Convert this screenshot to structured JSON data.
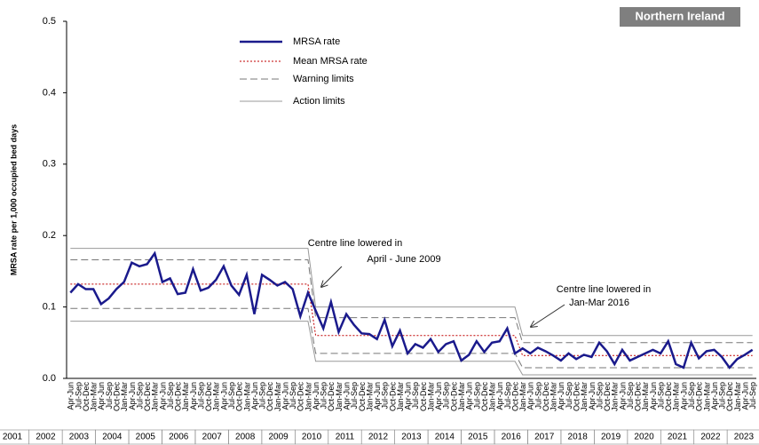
{
  "chart_data": {
    "type": "line",
    "badge": "Northern Ireland",
    "y_label": "MRSA rate per 1,000 occupied bed days",
    "ylim": [
      0,
      0.5
    ],
    "yticks": [
      {
        "value": 0,
        "label": "0.0"
      },
      0.1,
      0.2,
      0.3,
      0.4,
      0.5
    ],
    "categories": [
      "Apr-Jun",
      "Jul-Sep",
      "Oct-Dec",
      "Jan-Mar",
      "Apr-Jun",
      "Jul-Sep",
      "Oct-Dec",
      "Jan-Mar",
      "Apr-Jun",
      "Jul-Sep",
      "Oct-Dec",
      "Jan-Mar",
      "Apr-Jun",
      "Jul-Sep",
      "Oct-Dec",
      "Jan-Mar",
      "Apr-Jun",
      "Jul-Sep",
      "Oct-Dec",
      "Jan-Mar",
      "Apr-Jun",
      "Jul-Sep",
      "Oct-Dec",
      "Jan-Mar",
      "Apr-Jun",
      "Jul-Sep",
      "Oct-Dec",
      "Jan-Mar",
      "Apr-Jun",
      "Jul-Sep",
      "Oct-Dec",
      "Jan-Mar",
      "Apr-Jun",
      "Jul-Sep",
      "Oct-Dec",
      "Jan-Mar",
      "Apr-Jun",
      "Jul-Sep",
      "Oct-Dec",
      "Jan-Mar",
      "Apr-Jun",
      "Jul-Sep",
      "Oct-Dec",
      "Jan-Mar",
      "Apr-Jun",
      "Jul-Sep",
      "Oct-Dec",
      "Jan-Mar",
      "Apr-Jun",
      "Jul-Sep",
      "Oct-Dec",
      "Jan-Mar",
      "Apr-Jun",
      "Jul-Sep",
      "Oct-Dec",
      "Jan-Mar",
      "Apr-Jun",
      "Jul-Sep",
      "Oct-Dec",
      "Jan-Mar",
      "Apr-Jun",
      "Jul-Sep",
      "Oct-Dec",
      "Jan-Mar",
      "Apr-Jun",
      "Jul-Sep",
      "Oct-Dec",
      "Jan-Mar",
      "Apr-Jun",
      "Jul-Sep",
      "Oct-Dec",
      "Jan-Mar",
      "Apr-Jun",
      "Jul-Sep",
      "Oct-Dec",
      "Jan-Mar",
      "Apr-Jun",
      "Jul-Sep",
      "Oct-Dec",
      "Jan-Mar",
      "Apr-Jun",
      "Jul-Sep",
      "Oct-Dec",
      "Jan-Mar",
      "Apr-Jun",
      "Jul-Sep",
      "Oct-Dec",
      "Jan-Mar",
      "Apr-Jun",
      "Jul-Sep"
    ],
    "years": [
      "2001",
      "2002",
      "2003",
      "2004",
      "2005",
      "2006",
      "2007",
      "2008",
      "2009",
      "2010",
      "2011",
      "2012",
      "2013",
      "2014",
      "2015",
      "2016",
      "2017",
      "2018",
      "2019",
      "2020",
      "2021",
      "2022",
      "2023"
    ],
    "series": [
      {
        "name": "MRSA rate",
        "color": "#1a1a8c",
        "style": "solid",
        "values": [
          0.12,
          0.132,
          0.125,
          0.125,
          0.104,
          0.112,
          0.125,
          0.135,
          0.162,
          0.157,
          0.16,
          0.175,
          0.135,
          0.14,
          0.118,
          0.12,
          0.153,
          0.123,
          0.127,
          0.138,
          0.157,
          0.13,
          0.117,
          0.145,
          0.09,
          0.145,
          0.138,
          0.13,
          0.135,
          0.125,
          0.087,
          0.12,
          0.095,
          0.07,
          0.107,
          0.065,
          0.09,
          0.075,
          0.063,
          0.062,
          0.055,
          0.082,
          0.045,
          0.067,
          0.035,
          0.048,
          0.043,
          0.055,
          0.037,
          0.048,
          0.052,
          0.025,
          0.033,
          0.052,
          0.037,
          0.05,
          0.052,
          0.07,
          0.035,
          0.042,
          0.035,
          0.043,
          0.038,
          0.032,
          0.025,
          0.035,
          0.027,
          0.033,
          0.03,
          0.05,
          0.038,
          0.02,
          0.04,
          0.025,
          0.03,
          0.035,
          0.04,
          0.035,
          0.052,
          0.02,
          0.015,
          0.05,
          0.028,
          0.038,
          0.04,
          0.03,
          0.015,
          0.027,
          0.033,
          0.04
        ]
      },
      {
        "name": "Mean MRSA rate",
        "color": "#c00000",
        "style": "dotted",
        "values": [
          0.132,
          0.132,
          0.132,
          0.132,
          0.132,
          0.132,
          0.132,
          0.132,
          0.132,
          0.132,
          0.132,
          0.132,
          0.132,
          0.132,
          0.132,
          0.132,
          0.132,
          0.132,
          0.132,
          0.132,
          0.132,
          0.132,
          0.132,
          0.132,
          0.132,
          0.132,
          0.132,
          0.132,
          0.132,
          0.132,
          0.132,
          0.132,
          0.06,
          0.06,
          0.06,
          0.06,
          0.06,
          0.06,
          0.06,
          0.06,
          0.06,
          0.06,
          0.06,
          0.06,
          0.06,
          0.06,
          0.06,
          0.06,
          0.06,
          0.06,
          0.06,
          0.06,
          0.06,
          0.06,
          0.06,
          0.06,
          0.06,
          0.06,
          0.06,
          0.032,
          0.032,
          0.032,
          0.032,
          0.032,
          0.032,
          0.032,
          0.032,
          0.032,
          0.032,
          0.032,
          0.032,
          0.032,
          0.032,
          0.032,
          0.032,
          0.032,
          0.032,
          0.032,
          0.032,
          0.032,
          0.032,
          0.032,
          0.032,
          0.032,
          0.032,
          0.032,
          0.032,
          0.032,
          0.032,
          0.032
        ]
      },
      {
        "name": "Warning limits",
        "color": "#777777",
        "style": "dashed",
        "upper": [
          0.166,
          0.166,
          0.166,
          0.166,
          0.166,
          0.166,
          0.166,
          0.166,
          0.166,
          0.166,
          0.166,
          0.166,
          0.166,
          0.166,
          0.166,
          0.166,
          0.166,
          0.166,
          0.166,
          0.166,
          0.166,
          0.166,
          0.166,
          0.166,
          0.166,
          0.166,
          0.166,
          0.166,
          0.166,
          0.166,
          0.166,
          0.166,
          0.085,
          0.085,
          0.085,
          0.085,
          0.085,
          0.085,
          0.085,
          0.085,
          0.085,
          0.085,
          0.085,
          0.085,
          0.085,
          0.085,
          0.085,
          0.085,
          0.085,
          0.085,
          0.085,
          0.085,
          0.085,
          0.085,
          0.085,
          0.085,
          0.085,
          0.085,
          0.085,
          0.05,
          0.05,
          0.05,
          0.05,
          0.05,
          0.05,
          0.05,
          0.05,
          0.05,
          0.05,
          0.05,
          0.05,
          0.05,
          0.05,
          0.05,
          0.05,
          0.05,
          0.05,
          0.05,
          0.05,
          0.05,
          0.05,
          0.05,
          0.05,
          0.05,
          0.05,
          0.05,
          0.05,
          0.05,
          0.05,
          0.05
        ],
        "lower": [
          0.098,
          0.098,
          0.098,
          0.098,
          0.098,
          0.098,
          0.098,
          0.098,
          0.098,
          0.098,
          0.098,
          0.098,
          0.098,
          0.098,
          0.098,
          0.098,
          0.098,
          0.098,
          0.098,
          0.098,
          0.098,
          0.098,
          0.098,
          0.098,
          0.098,
          0.098,
          0.098,
          0.098,
          0.098,
          0.098,
          0.098,
          0.098,
          0.035,
          0.035,
          0.035,
          0.035,
          0.035,
          0.035,
          0.035,
          0.035,
          0.035,
          0.035,
          0.035,
          0.035,
          0.035,
          0.035,
          0.035,
          0.035,
          0.035,
          0.035,
          0.035,
          0.035,
          0.035,
          0.035,
          0.035,
          0.035,
          0.035,
          0.035,
          0.035,
          0.015,
          0.015,
          0.015,
          0.015,
          0.015,
          0.015,
          0.015,
          0.015,
          0.015,
          0.015,
          0.015,
          0.015,
          0.015,
          0.015,
          0.015,
          0.015,
          0.015,
          0.015,
          0.015,
          0.015,
          0.015,
          0.015,
          0.015,
          0.015,
          0.015,
          0.015,
          0.015,
          0.015,
          0.015,
          0.015,
          0.015
        ]
      },
      {
        "name": "Action limits",
        "color": "#999999",
        "style": "solid-thin",
        "upper": [
          0.182,
          0.182,
          0.182,
          0.182,
          0.182,
          0.182,
          0.182,
          0.182,
          0.182,
          0.182,
          0.182,
          0.182,
          0.182,
          0.182,
          0.182,
          0.182,
          0.182,
          0.182,
          0.182,
          0.182,
          0.182,
          0.182,
          0.182,
          0.182,
          0.182,
          0.182,
          0.182,
          0.182,
          0.182,
          0.182,
          0.182,
          0.182,
          0.1,
          0.1,
          0.1,
          0.1,
          0.1,
          0.1,
          0.1,
          0.1,
          0.1,
          0.1,
          0.1,
          0.1,
          0.1,
          0.1,
          0.1,
          0.1,
          0.1,
          0.1,
          0.1,
          0.1,
          0.1,
          0.1,
          0.1,
          0.1,
          0.1,
          0.1,
          0.1,
          0.06,
          0.06,
          0.06,
          0.06,
          0.06,
          0.06,
          0.06,
          0.06,
          0.06,
          0.06,
          0.06,
          0.06,
          0.06,
          0.06,
          0.06,
          0.06,
          0.06,
          0.06,
          0.06,
          0.06,
          0.06,
          0.06,
          0.06,
          0.06,
          0.06,
          0.06,
          0.06,
          0.06,
          0.06,
          0.06,
          0.06
        ],
        "lower": [
          0.08,
          0.08,
          0.08,
          0.08,
          0.08,
          0.08,
          0.08,
          0.08,
          0.08,
          0.08,
          0.08,
          0.08,
          0.08,
          0.08,
          0.08,
          0.08,
          0.08,
          0.08,
          0.08,
          0.08,
          0.08,
          0.08,
          0.08,
          0.08,
          0.08,
          0.08,
          0.08,
          0.08,
          0.08,
          0.08,
          0.08,
          0.08,
          0.024,
          0.024,
          0.024,
          0.024,
          0.024,
          0.024,
          0.024,
          0.024,
          0.024,
          0.024,
          0.024,
          0.024,
          0.024,
          0.024,
          0.024,
          0.024,
          0.024,
          0.024,
          0.024,
          0.024,
          0.024,
          0.024,
          0.024,
          0.024,
          0.024,
          0.024,
          0.024,
          0.005,
          0.005,
          0.005,
          0.005,
          0.005,
          0.005,
          0.005,
          0.005,
          0.005,
          0.005,
          0.005,
          0.005,
          0.005,
          0.005,
          0.005,
          0.005,
          0.005,
          0.005,
          0.005,
          0.005,
          0.005,
          0.005,
          0.005,
          0.005,
          0.005,
          0.005,
          0.005,
          0.005,
          0.005,
          0.005,
          0.005
        ]
      }
    ],
    "annotations": [
      {
        "lines": [
          "Centre line lowered in",
          "April  - June 2009"
        ]
      },
      {
        "lines": [
          "Centre line lowered in",
          "Jan-Mar 2016"
        ]
      }
    ]
  }
}
